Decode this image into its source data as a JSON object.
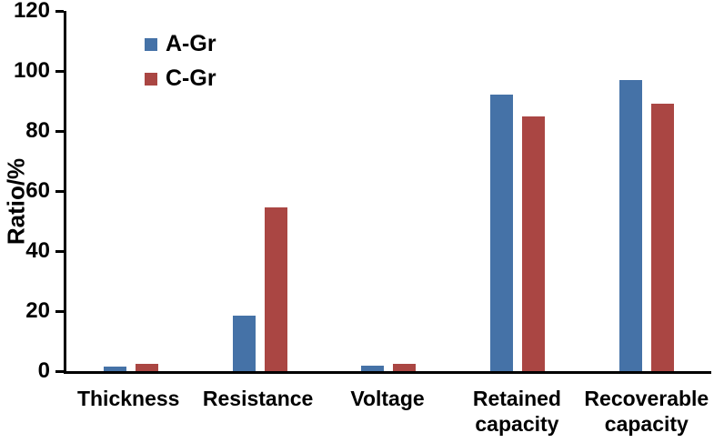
{
  "chart_data": {
    "type": "bar",
    "title": "",
    "xlabel": "",
    "ylabel": "Ratio/%",
    "ylim": [
      0,
      120
    ],
    "yticks": [
      0,
      20,
      40,
      60,
      80,
      100,
      120
    ],
    "grid": false,
    "legend_position": "top-left-inside",
    "categories": [
      "Thickness",
      "Resistance",
      "Voltage",
      "Retained\ncapacity",
      "Recoverable\ncapacity"
    ],
    "series": [
      {
        "name": "A-Gr",
        "color": "#4572A7",
        "values": [
          1.5,
          18.5,
          1.8,
          92,
          97
        ]
      },
      {
        "name": "C-Gr",
        "color": "#AA4643",
        "values": [
          2.3,
          54.5,
          2.3,
          85,
          89
        ]
      }
    ],
    "colors": {
      "axis": "#000000",
      "background": "#ffffff"
    }
  }
}
